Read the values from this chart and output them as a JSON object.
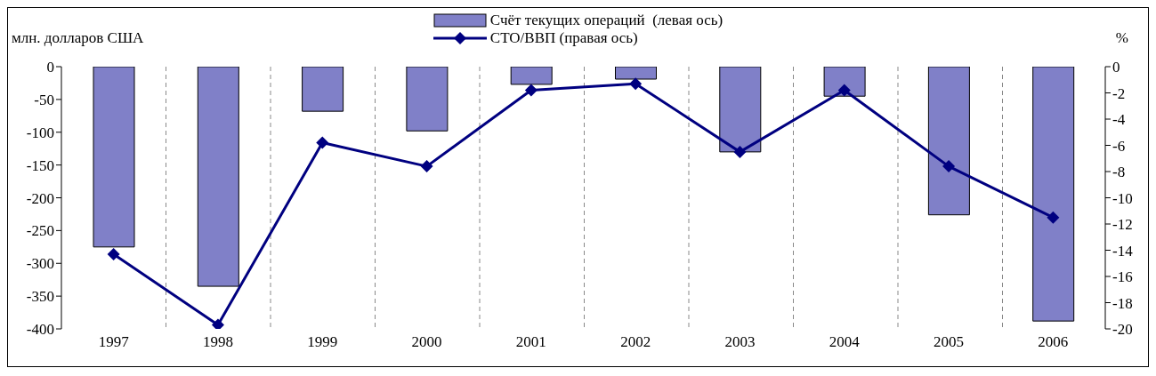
{
  "chart_data": {
    "type": "bar",
    "ylabel": "млн. долларов США",
    "y2label": "%",
    "categories": [
      "1997",
      "1998",
      "1999",
      "2000",
      "2001",
      "2002",
      "2003",
      "2004",
      "2005",
      "2006"
    ],
    "series": [
      {
        "name": "Счёт текущих операций  (левая ось)",
        "color": "#8080c8",
        "values": [
          -275,
          -335,
          -68,
          -98,
          -27,
          -19,
          -130,
          -45,
          -226,
          -388
        ]
      },
      {
        "name": "СТО/ВВП (правая ось)",
        "type": "line",
        "axis": "y2",
        "color": "#000080",
        "marker": "diamond",
        "values": [
          -14.3,
          -19.7,
          -5.8,
          -7.6,
          -1.8,
          -1.3,
          -6.5,
          -1.8,
          -7.6,
          -11.5
        ]
      }
    ],
    "ylim": [
      -400,
      0
    ],
    "yticks": [
      0,
      -50,
      -100,
      -150,
      -200,
      -250,
      -300,
      -350,
      -400
    ],
    "y2lim": [
      -20,
      0
    ],
    "y2ticks": [
      0,
      -2,
      -4,
      -6,
      -8,
      -10,
      -12,
      -14,
      -16,
      -18,
      -20
    ],
    "grid": "x",
    "legend": "top"
  }
}
